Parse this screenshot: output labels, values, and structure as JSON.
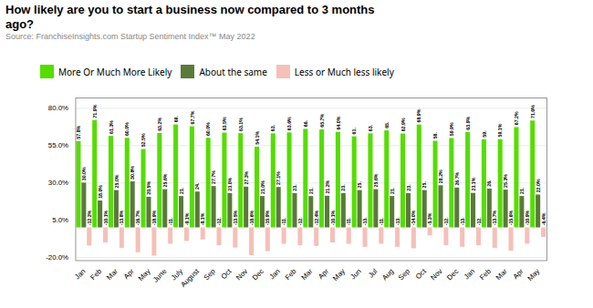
{
  "chart_data": {
    "type": "bar",
    "title": "How likely are you to start a business now compared to 3 months\nago?",
    "subtitle": "Source: FranchiseInsights.com Startup Sentiment Index™ May 2022",
    "categories": [
      "Jan",
      "Feb",
      "Mar",
      "Apr",
      "May",
      "June",
      "July",
      "August",
      "Sep",
      "Oct",
      "Nov",
      "Dec",
      "Jan",
      "Feb",
      "Mar",
      "Apr",
      "May",
      "Jun",
      "Jul",
      "Aug",
      "Sep",
      "Oct",
      "Nov",
      "Dec",
      "Jan",
      "Feb",
      "Mar",
      "Apr",
      "May"
    ],
    "series": [
      {
        "name": "More Or Much More Likely",
        "color": "#55dd00",
        "values": [
          57.8,
          71.9,
          61.3,
          60.0,
          52.5,
          63.2,
          69.0,
          67.7,
          60.0,
          63.5,
          63.1,
          54.1,
          63.0,
          63.6,
          66.0,
          65.7,
          64.0,
          61.0,
          63.0,
          65.0,
          62.9,
          68.9,
          58.0,
          59.9,
          63.9,
          59.0,
          59.1,
          67.2,
          71.6
        ],
        "value_labels": [
          "57.8%",
          "71.9%",
          "61.3%",
          "60.0%",
          "52.5%",
          "63.2%",
          "69.",
          "67.7%",
          "60.0%",
          "63.5%",
          "63.1%",
          "54.1%",
          "63.",
          "63.6%",
          "66.",
          "65.7%",
          "64.0%",
          "61.",
          "63.",
          "65.",
          "62.9%",
          "68.9%",
          "58.",
          "59.9%",
          "63.9%",
          "59.",
          "59.1%",
          "67.2%",
          "71.6%"
        ]
      },
      {
        "name": "About the same",
        "color": "#5a7a3a",
        "values": [
          30.0,
          18.0,
          25.0,
          30.8,
          20.5,
          25.6,
          21.0,
          24.0,
          27.7,
          23.0,
          27.3,
          21.0,
          27.1,
          23.0,
          21.0,
          21.2,
          23.0,
          25.0,
          25.6,
          21.0,
          23.0,
          25.0,
          28.2,
          26.7,
          23.1,
          26.0,
          25.3,
          21.0,
          22.0
        ],
        "value_labels": [
          "30.0%",
          "18.0%",
          "25.0%",
          "30.8%",
          "20.5%",
          "25.6%",
          "21.",
          "24.",
          "27.7%",
          "23.0%",
          "27.3%",
          "21.0%",
          "27.1%",
          "23.",
          "21.",
          "21.2%",
          "23.",
          "25.",
          "25.6%",
          "21.",
          "23.",
          "25.",
          "28.2%",
          "26.7%",
          "23.1%",
          "26.",
          "25.3%",
          "21.",
          "22.0%"
        ]
      },
      {
        "name": "Less or Much less likely",
        "color": "#f5c0b8",
        "values": [
          -12.2,
          -10.1,
          -13.8,
          -16.7,
          -18.9,
          -11.0,
          -9.1,
          -8.1,
          -12.0,
          -13.5,
          -18.6,
          -15.9,
          -11.0,
          -12.0,
          -12.4,
          -10.1,
          -11.0,
          -13.0,
          -11.0,
          -13.0,
          -14.0,
          -5.3,
          -12.0,
          -13.0,
          -12.0,
          -13.7,
          -15.6,
          -10.9,
          -6.4
        ],
        "value_labels": [
          "-12.2%",
          "-10.1%",
          "-13.8%",
          "-16.7%",
          "-18.9%",
          "-11.",
          "-9.1%",
          "-8.1%",
          "-12.",
          "-13.5%",
          "-18.6%",
          "-15.9%",
          "-11.",
          "-12.",
          "-12.4%",
          "-10.1%",
          "-11.",
          "-13.",
          "-11.",
          "-13.",
          "-14.0%",
          "-5.3%",
          "-12.",
          "-13.",
          "-12.",
          "-13.7%",
          "-15.6%",
          "-10.9%",
          "-6.4%"
        ]
      }
    ],
    "ylim": [
      -22.0,
      87.0
    ],
    "yticks": [
      {
        "value": -20.0,
        "label": "-20.0%"
      },
      {
        "value": 5.0,
        "label": "5.0%"
      },
      {
        "value": 30.0,
        "label": "30.0%"
      },
      {
        "value": 55.0,
        "label": "55.0%"
      },
      {
        "value": 80.0,
        "label": "80.0%"
      }
    ],
    "grid": true,
    "legend": "top",
    "data_labels": true
  }
}
